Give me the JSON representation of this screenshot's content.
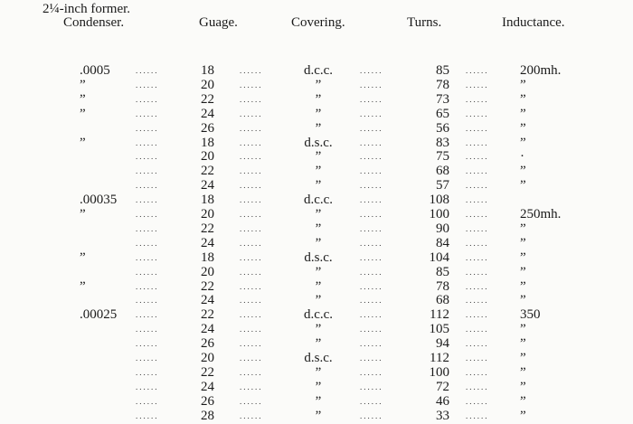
{
  "title": "2¼-inch former.",
  "headers": {
    "condenser": "Condenser.",
    "gauge": "Guage.",
    "covering": "Covering.",
    "turns": "Turns.",
    "inductance": "Inductance."
  },
  "leader": "......",
  "rows": [
    {
      "condenser": ".0005",
      "gauge": "18",
      "covering": "d.c.c.",
      "turns": "85",
      "inductance": "200mh."
    },
    {
      "condenser": "”",
      "gauge": "20",
      "covering": "”",
      "turns": "78",
      "inductance": "”"
    },
    {
      "condenser": "”",
      "gauge": "22",
      "covering": "”",
      "turns": "73",
      "inductance": "”"
    },
    {
      "condenser": "”",
      "gauge": "24",
      "covering": "”",
      "turns": "65",
      "inductance": "”"
    },
    {
      "condenser": "",
      "gauge": "26",
      "covering": "”",
      "turns": "56",
      "inductance": "”"
    },
    {
      "condenser": "”",
      "gauge": "18",
      "covering": "d.s.c.",
      "turns": "83",
      "inductance": "”"
    },
    {
      "condenser": "",
      "gauge": "20",
      "covering": "”",
      "turns": "75",
      "inductance": "·"
    },
    {
      "condenser": "",
      "gauge": "22",
      "covering": "”",
      "turns": "68",
      "inductance": "”"
    },
    {
      "condenser": "",
      "gauge": "24",
      "covering": "”",
      "turns": "57",
      "inductance": "”"
    },
    {
      "condenser": ".00035",
      "gauge": "18",
      "covering": "d.c.c.",
      "turns": "108",
      "inductance": ""
    },
    {
      "condenser": "”",
      "gauge": "20",
      "covering": "”",
      "turns": "100",
      "inductance": "250mh."
    },
    {
      "condenser": "",
      "gauge": "22",
      "covering": "”",
      "turns": "90",
      "inductance": "”"
    },
    {
      "condenser": "",
      "gauge": "24",
      "covering": "”",
      "turns": "84",
      "inductance": "”"
    },
    {
      "condenser": "”",
      "gauge": "18",
      "covering": "d.s.c.",
      "turns": "104",
      "inductance": "”"
    },
    {
      "condenser": "",
      "gauge": "20",
      "covering": "”",
      "turns": "85",
      "inductance": "”"
    },
    {
      "condenser": "”",
      "gauge": "22",
      "covering": "”",
      "turns": "78",
      "inductance": "”"
    },
    {
      "condenser": "",
      "gauge": "24",
      "covering": "”",
      "turns": "68",
      "inductance": "”"
    },
    {
      "condenser": ".00025",
      "gauge": "22",
      "covering": "d.c.c.",
      "turns": "112",
      "inductance": "350"
    },
    {
      "condenser": "",
      "gauge": "24",
      "covering": "”",
      "turns": "105",
      "inductance": "”"
    },
    {
      "condenser": "",
      "gauge": "26",
      "covering": "”",
      "turns": "94",
      "inductance": "”"
    },
    {
      "condenser": "",
      "gauge": "20",
      "covering": "d.s.c.",
      "turns": "112",
      "inductance": "”"
    },
    {
      "condenser": "",
      "gauge": "22",
      "covering": "”",
      "turns": "100",
      "inductance": "”"
    },
    {
      "condenser": "",
      "gauge": "24",
      "covering": "”",
      "turns": "72",
      "inductance": "”"
    },
    {
      "condenser": "",
      "gauge": "26",
      "covering": "”",
      "turns": "46",
      "inductance": "”"
    },
    {
      "condenser": "",
      "gauge": "28",
      "covering": "”",
      "turns": "33",
      "inductance": "”"
    }
  ]
}
